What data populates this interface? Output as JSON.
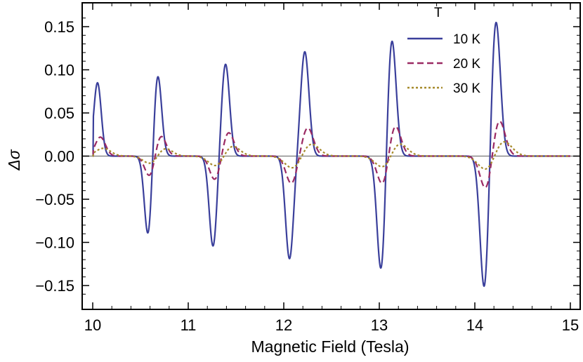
{
  "chart_data": {
    "type": "line",
    "xlabel": "Magnetic Field (Tesla)",
    "ylabel": "Δσ",
    "xlim": [
      10,
      15
    ],
    "ylim": [
      -0.175,
      0.175
    ],
    "x_ticks": [
      10,
      11,
      12,
      13,
      14,
      15
    ],
    "x_tick_labels": [
      "10",
      "11",
      "12",
      "13",
      "14",
      "15"
    ],
    "y_ticks": [
      0.15,
      0.1,
      0.05,
      0.0,
      -0.05,
      -0.1,
      -0.15
    ],
    "y_tick_labels": [
      "0.15",
      "0.10",
      "0.05",
      "0.00",
      "−0.05",
      "−0.10",
      "−0.15"
    ],
    "grid": false,
    "zero_line": true,
    "legend": {
      "title": "T",
      "placement": "top-right",
      "entries": [
        "10 K",
        "20 K",
        "30 K"
      ]
    },
    "resonances": [
      {
        "x_pos_peak": 10.05,
        "x_neg_peak": 10.58
      },
      {
        "x_pos_peak": 10.68,
        "x_neg_peak": 11.26
      },
      {
        "x_pos_peak": 11.39,
        "x_neg_peak": 12.06
      },
      {
        "x_pos_peak": 12.22,
        "x_neg_peak": 13.02
      },
      {
        "x_pos_peak": 13.13,
        "x_neg_peak": 14.1
      },
      {
        "x_pos_peak": 14.22
      }
    ],
    "series": [
      {
        "name": "10 K",
        "color": "#3A3F9B",
        "style": "solid",
        "pos_peaks": [
          0.085,
          0.095,
          0.107,
          0.121,
          0.138,
          0.159
        ],
        "neg_peaks": [
          -0.093,
          -0.105,
          -0.119,
          -0.136,
          -0.156
        ]
      },
      {
        "name": "20 K",
        "color": "#9B2A63",
        "style": "dashed",
        "pos_peaks": [
          0.022,
          0.025,
          0.028,
          0.033,
          0.038,
          0.044
        ],
        "neg_peaks": [
          -0.025,
          -0.028,
          -0.032,
          -0.036,
          -0.041
        ]
      },
      {
        "name": "30 K",
        "color": "#A68A2B",
        "style": "dotted",
        "pos_peaks": [
          0.009,
          0.011,
          0.013,
          0.015,
          0.018,
          0.021
        ],
        "neg_peaks": [
          -0.011,
          -0.013,
          -0.015,
          -0.017,
          -0.02
        ]
      }
    ]
  }
}
